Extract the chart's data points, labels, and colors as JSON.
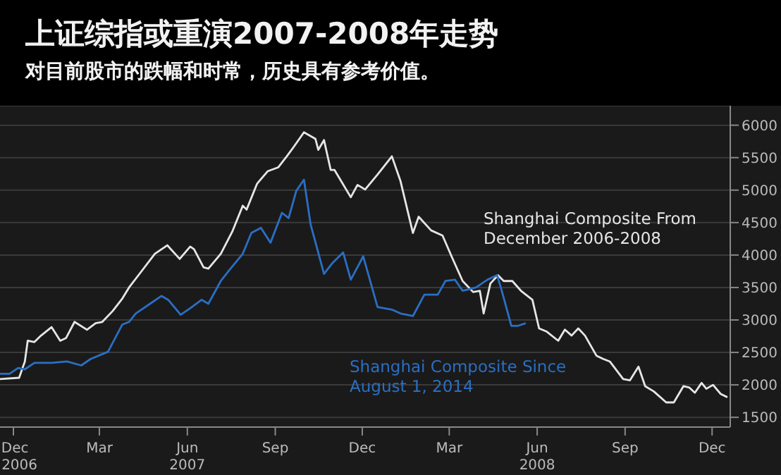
{
  "chart_data": {
    "type": "line",
    "title": "上证综指或重演2007-2008年走势",
    "subtitle": "对目前股市的跌幅和时常，历史具有参考价值。",
    "xlim": [
      "2006-11-17",
      "2008-12-20"
    ],
    "xticks": [
      {
        "value": "2006-12-01",
        "label": "Dec\n2006"
      },
      {
        "value": "2007-03-01",
        "label": "Mar"
      },
      {
        "value": "2007-06-01",
        "label": "Jun\n2007"
      },
      {
        "value": "2007-09-01",
        "label": "Sep"
      },
      {
        "value": "2007-12-01",
        "label": "Dec"
      },
      {
        "value": "2008-03-01",
        "label": "Mar"
      },
      {
        "value": "2008-06-01",
        "label": "Jun\n2008"
      },
      {
        "value": "2008-09-01",
        "label": "Sep"
      },
      {
        "value": "2008-12-01",
        "label": "Dec"
      }
    ],
    "ylim": [
      1350,
      6300
    ],
    "yticks": [
      1500,
      2000,
      2500,
      3000,
      3500,
      4000,
      4500,
      5000,
      5500,
      6000
    ],
    "grid": "y",
    "series": [
      {
        "name": "Shanghai Composite From December 2006-2008",
        "color": "#e6e6e6",
        "x": [
          "2006-11-17",
          "2006-12-07",
          "2006-12-13",
          "2006-12-16",
          "2006-12-23",
          "2006-12-30",
          "2007-01-10",
          "2007-01-19",
          "2007-01-25",
          "2007-02-03",
          "2007-02-16",
          "2007-02-25",
          "2007-03-04",
          "2007-03-15",
          "2007-03-25",
          "2007-04-01",
          "2007-04-13",
          "2007-04-28",
          "2007-05-11",
          "2007-05-24",
          "2007-06-04",
          "2007-06-08",
          "2007-06-18",
          "2007-06-23",
          "2007-07-06",
          "2007-07-18",
          "2007-07-29",
          "2007-08-02",
          "2007-08-13",
          "2007-08-24",
          "2007-09-04",
          "2007-09-13",
          "2007-09-20",
          "2007-10-01",
          "2007-10-13",
          "2007-10-16",
          "2007-10-22",
          "2007-10-29",
          "2007-11-02",
          "2007-11-19",
          "2007-11-26",
          "2007-12-04",
          "2007-12-17",
          "2008-01-01",
          "2008-01-10",
          "2008-01-23",
          "2008-01-29",
          "2008-02-11",
          "2008-02-23",
          "2008-03-04",
          "2008-03-15",
          "2008-03-26",
          "2008-04-02",
          "2008-04-06",
          "2008-04-13",
          "2008-04-21",
          "2008-04-27",
          "2008-05-06",
          "2008-05-15",
          "2008-05-27",
          "2008-06-03",
          "2008-06-11",
          "2008-06-23",
          "2008-06-30",
          "2008-07-07",
          "2008-07-14",
          "2008-07-21",
          "2008-08-02",
          "2008-08-09",
          "2008-08-16",
          "2008-08-30",
          "2008-09-06",
          "2008-09-15",
          "2008-09-22",
          "2008-10-01",
          "2008-10-14",
          "2008-10-22",
          "2008-11-01",
          "2008-11-07",
          "2008-11-13",
          "2008-11-20",
          "2008-11-25",
          "2008-12-02",
          "2008-12-10",
          "2008-12-17"
        ],
        "values": [
          2090,
          2110,
          2360,
          2680,
          2660,
          2760,
          2890,
          2680,
          2720,
          2970,
          2850,
          2950,
          2970,
          3140,
          3330,
          3500,
          3730,
          4020,
          4150,
          3940,
          4130,
          4090,
          3810,
          3790,
          4020,
          4360,
          4760,
          4700,
          5100,
          5290,
          5350,
          5520,
          5660,
          5890,
          5790,
          5620,
          5770,
          5310,
          5310,
          4890,
          5080,
          5010,
          5240,
          5520,
          5140,
          4340,
          4590,
          4380,
          4300,
          3960,
          3600,
          3430,
          3450,
          3100,
          3560,
          3690,
          3600,
          3600,
          3450,
          3310,
          2870,
          2820,
          2680,
          2850,
          2760,
          2870,
          2760,
          2450,
          2400,
          2360,
          2090,
          2070,
          2280,
          1980,
          1900,
          1730,
          1730,
          1980,
          1960,
          1880,
          2030,
          1940,
          2000,
          1860,
          1810
        ]
      },
      {
        "name": "Shanghai Composite Since August 1, 2014",
        "color": "#2a6fc4",
        "x": [
          "2006-11-17",
          "2006-11-27",
          "2006-12-06",
          "2006-12-13",
          "2006-12-23",
          "2007-01-10",
          "2007-01-26",
          "2007-02-10",
          "2007-02-20",
          "2007-03-10",
          "2007-03-25",
          "2007-04-01",
          "2007-04-08",
          "2007-04-23",
          "2007-05-05",
          "2007-05-12",
          "2007-05-25",
          "2007-06-04",
          "2007-06-16",
          "2007-06-23",
          "2007-07-06",
          "2007-07-15",
          "2007-07-29",
          "2007-08-07",
          "2007-08-17",
          "2007-08-27",
          "2007-09-08",
          "2007-09-15",
          "2007-09-23",
          "2007-10-01",
          "2007-10-08",
          "2007-10-22",
          "2007-10-31",
          "2007-11-11",
          "2007-11-19",
          "2007-12-02",
          "2007-12-17",
          "2008-01-01",
          "2008-01-10",
          "2008-01-23",
          "2008-02-04",
          "2008-02-18",
          "2008-02-26",
          "2008-03-07",
          "2008-03-15",
          "2008-03-29",
          "2008-04-10",
          "2008-04-20",
          "2008-04-24",
          "2008-05-05",
          "2008-05-12",
          "2008-05-20"
        ],
        "values": [
          2170,
          2170,
          2260,
          2240,
          2340,
          2340,
          2360,
          2300,
          2400,
          2510,
          2930,
          2970,
          3100,
          3250,
          3370,
          3310,
          3080,
          3180,
          3310,
          3250,
          3600,
          3770,
          4020,
          4340,
          4420,
          4190,
          4650,
          4570,
          4990,
          5160,
          4470,
          3710,
          3880,
          4040,
          3620,
          3980,
          3200,
          3160,
          3100,
          3060,
          3390,
          3390,
          3600,
          3620,
          3450,
          3500,
          3620,
          3690,
          3500,
          2910,
          2910,
          2950
        ]
      }
    ]
  }
}
